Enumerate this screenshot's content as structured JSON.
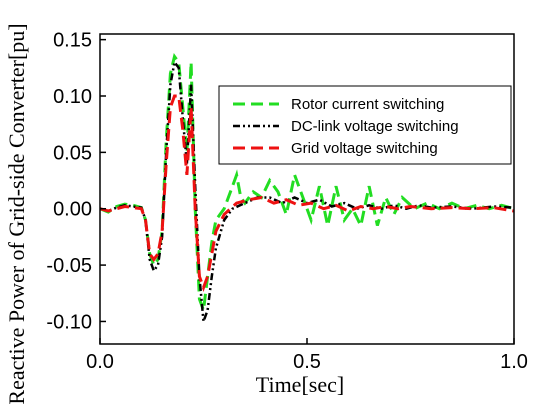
{
  "chart_data": {
    "type": "line",
    "title": "",
    "xlabel": "Time[sec]",
    "ylabel": "Reactive Power of Grid-side Converter[pu]",
    "xlim": [
      0,
      1.0
    ],
    "ylim": [
      -0.12,
      0.155
    ],
    "xticks": [
      0.0,
      0.5,
      1.0
    ],
    "xtick_labels": [
      "0.0",
      "0.5",
      "1.0"
    ],
    "yticks": [
      -0.1,
      -0.05,
      0.0,
      0.05,
      0.1,
      0.15
    ],
    "ytick_labels": [
      "-0.10",
      "-0.05",
      "0.00",
      "0.05",
      "0.10",
      "0.15"
    ],
    "grid": false,
    "legend_position": "top-right",
    "series": [
      {
        "name": "Rotor current switching",
        "color": "#22dd22",
        "style": "dashed",
        "points": [
          [
            0.0,
            0.0
          ],
          [
            0.02,
            -0.003
          ],
          [
            0.04,
            0.002
          ],
          [
            0.06,
            0.004
          ],
          [
            0.08,
            0.003
          ],
          [
            0.1,
            0.001
          ],
          [
            0.11,
            -0.01
          ],
          [
            0.12,
            -0.04
          ],
          [
            0.13,
            -0.05
          ],
          [
            0.14,
            -0.045
          ],
          [
            0.15,
            -0.02
          ],
          [
            0.16,
            0.06
          ],
          [
            0.17,
            0.12
          ],
          [
            0.18,
            0.135
          ],
          [
            0.19,
            0.13
          ],
          [
            0.2,
            0.09
          ],
          [
            0.21,
            0.05
          ],
          [
            0.22,
            0.13
          ],
          [
            0.23,
            0.0
          ],
          [
            0.24,
            -0.08
          ],
          [
            0.25,
            -0.09
          ],
          [
            0.26,
            -0.06
          ],
          [
            0.27,
            -0.03
          ],
          [
            0.28,
            -0.01
          ],
          [
            0.3,
            0.0
          ],
          [
            0.32,
            0.02
          ],
          [
            0.33,
            0.03
          ],
          [
            0.34,
            0.01
          ],
          [
            0.35,
            0.005
          ],
          [
            0.37,
            0.015
          ],
          [
            0.39,
            0.01
          ],
          [
            0.41,
            0.025
          ],
          [
            0.43,
            0.015
          ],
          [
            0.45,
            -0.005
          ],
          [
            0.47,
            0.03
          ],
          [
            0.49,
            0.01
          ],
          [
            0.51,
            -0.01
          ],
          [
            0.53,
            0.02
          ],
          [
            0.55,
            -0.015
          ],
          [
            0.57,
            0.02
          ],
          [
            0.59,
            -0.01
          ],
          [
            0.61,
            0.0
          ],
          [
            0.63,
            -0.015
          ],
          [
            0.65,
            0.02
          ],
          [
            0.67,
            -0.015
          ],
          [
            0.69,
            0.01
          ],
          [
            0.71,
            -0.005
          ],
          [
            0.73,
            0.01
          ],
          [
            0.76,
            0.0
          ],
          [
            0.79,
            0.005
          ],
          [
            0.82,
            0.0
          ],
          [
            0.85,
            0.005
          ],
          [
            0.88,
            0.0
          ],
          [
            0.91,
            0.003
          ],
          [
            0.94,
            0.0
          ],
          [
            0.97,
            0.003
          ],
          [
            1.0,
            0.0
          ]
        ]
      },
      {
        "name": "DC-link voltage switching",
        "color": "#000000",
        "style": "dashdot",
        "points": [
          [
            0.0,
            0.0
          ],
          [
            0.02,
            -0.002
          ],
          [
            0.04,
            0.001
          ],
          [
            0.06,
            0.003
          ],
          [
            0.08,
            0.002
          ],
          [
            0.1,
            0.001
          ],
          [
            0.11,
            -0.01
          ],
          [
            0.12,
            -0.045
          ],
          [
            0.13,
            -0.055
          ],
          [
            0.14,
            -0.05
          ],
          [
            0.15,
            -0.025
          ],
          [
            0.16,
            0.05
          ],
          [
            0.17,
            0.11
          ],
          [
            0.18,
            0.13
          ],
          [
            0.19,
            0.125
          ],
          [
            0.2,
            0.08
          ],
          [
            0.21,
            0.04
          ],
          [
            0.22,
            0.11
          ],
          [
            0.23,
            0.02
          ],
          [
            0.24,
            -0.06
          ],
          [
            0.25,
            -0.1
          ],
          [
            0.26,
            -0.09
          ],
          [
            0.27,
            -0.06
          ],
          [
            0.28,
            -0.035
          ],
          [
            0.3,
            -0.01
          ],
          [
            0.32,
            0.0
          ],
          [
            0.35,
            0.005
          ],
          [
            0.38,
            0.01
          ],
          [
            0.41,
            0.01
          ],
          [
            0.44,
            0.005
          ],
          [
            0.47,
            0.01
          ],
          [
            0.5,
            0.005
          ],
          [
            0.53,
            0.008
          ],
          [
            0.56,
            0.002
          ],
          [
            0.59,
            0.005
          ],
          [
            0.62,
            0.0
          ],
          [
            0.65,
            0.003
          ],
          [
            0.68,
            0.0
          ],
          [
            0.71,
            0.003
          ],
          [
            0.74,
            0.0
          ],
          [
            0.77,
            0.003
          ],
          [
            0.8,
            0.001
          ],
          [
            0.85,
            0.002
          ],
          [
            0.9,
            0.0
          ],
          [
            0.95,
            0.002
          ],
          [
            1.0,
            0.001
          ]
        ]
      },
      {
        "name": "Grid voltage switching",
        "color": "#ee1111",
        "style": "dashed",
        "points": [
          [
            0.0,
            0.0
          ],
          [
            0.02,
            -0.002
          ],
          [
            0.04,
            0.0
          ],
          [
            0.06,
            0.002
          ],
          [
            0.08,
            0.001
          ],
          [
            0.1,
            0.0
          ],
          [
            0.11,
            -0.01
          ],
          [
            0.12,
            -0.04
          ],
          [
            0.13,
            -0.045
          ],
          [
            0.14,
            -0.04
          ],
          [
            0.15,
            -0.02
          ],
          [
            0.16,
            0.04
          ],
          [
            0.17,
            0.09
          ],
          [
            0.18,
            0.1
          ],
          [
            0.19,
            0.1
          ],
          [
            0.2,
            0.07
          ],
          [
            0.21,
            0.03
          ],
          [
            0.22,
            0.09
          ],
          [
            0.23,
            0.0
          ],
          [
            0.24,
            -0.06
          ],
          [
            0.25,
            -0.07
          ],
          [
            0.26,
            -0.06
          ],
          [
            0.27,
            -0.04
          ],
          [
            0.28,
            -0.02
          ],
          [
            0.3,
            -0.005
          ],
          [
            0.33,
            0.005
          ],
          [
            0.36,
            0.008
          ],
          [
            0.39,
            0.01
          ],
          [
            0.42,
            0.005
          ],
          [
            0.45,
            0.008
          ],
          [
            0.48,
            0.003
          ],
          [
            0.51,
            0.005
          ],
          [
            0.54,
            0.0
          ],
          [
            0.57,
            0.003
          ],
          [
            0.6,
            -0.002
          ],
          [
            0.63,
            0.002
          ],
          [
            0.66,
            0.0
          ],
          [
            0.69,
            0.002
          ],
          [
            0.72,
            0.0
          ],
          [
            0.75,
            0.002
          ],
          [
            0.8,
            0.0
          ],
          [
            0.85,
            0.001
          ],
          [
            0.9,
            0.0
          ],
          [
            0.95,
            0.001
          ],
          [
            1.0,
            -0.002
          ]
        ]
      }
    ]
  }
}
